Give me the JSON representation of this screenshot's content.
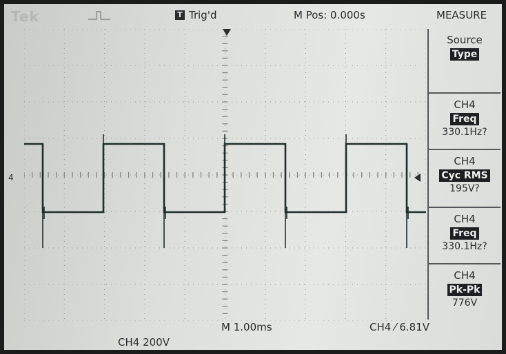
{
  "header": {
    "brand": "Tek",
    "trigger_badge": "T",
    "trigger_status": "Trig'd",
    "horizontal_position": "M Pos: 0.000s",
    "menu_title": "MEASURE"
  },
  "menu": [
    {
      "line1": "Source",
      "line2": "Type",
      "line3": ""
    },
    {
      "line1": "CH4",
      "line2": "Freq",
      "line3": "330.1Hz?"
    },
    {
      "line1": "CH4",
      "line2": "Cyc RMS",
      "line3": "195V?"
    },
    {
      "line1": "CH4",
      "line2": "Freq",
      "line3": "330.1Hz?"
    },
    {
      "line1": "CH4",
      "line2": "Pk-Pk",
      "line3": "776V"
    }
  ],
  "status": {
    "channel_marker": "4",
    "timebase": "M 1.00ms",
    "trigger_info": "CH4 ⁄ 6.81V",
    "channel_scale": "CH4  200V"
  },
  "colors": {
    "screen": "#dcdedb",
    "trace": "#1e2f2e",
    "text": "#2b2d2f"
  },
  "waveform": {
    "type": "square",
    "frequency_hz": 330.1,
    "peak_to_peak_v": 776,
    "volts_per_div": 200,
    "seconds_per_div": 0.001
  }
}
